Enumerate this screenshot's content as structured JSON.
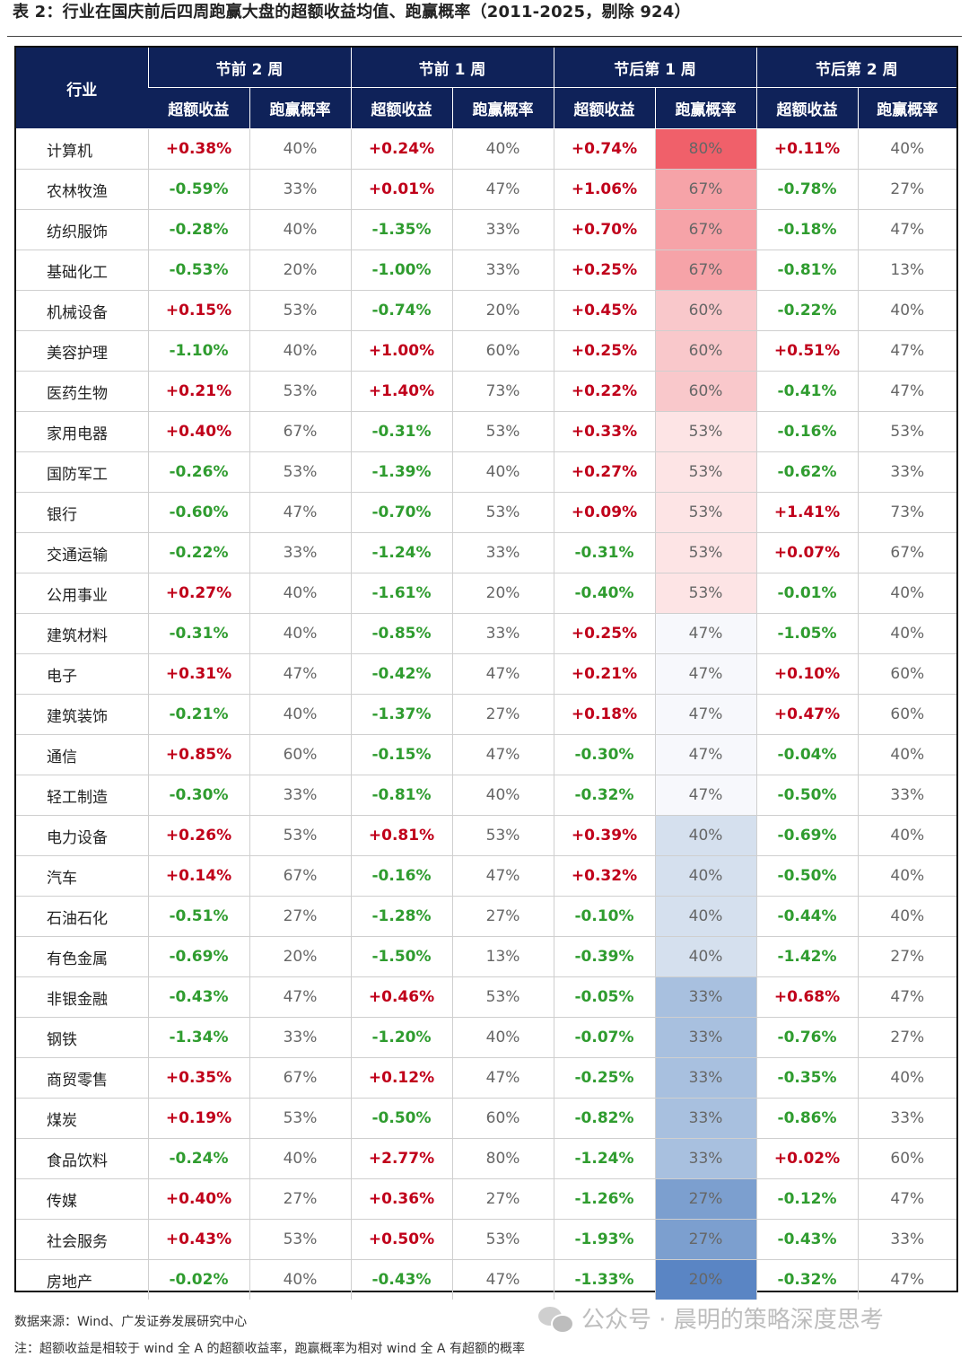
{
  "title": "表 2：行业在国庆前后四周跑赢大盘的超额收益均值、跑赢概率（2011-2025，剔除 924）",
  "header": {
    "industry": "行业",
    "groups": [
      "节前 2 周",
      "节前 1 周",
      "节后第 1 周",
      "节后第 2 周"
    ],
    "sub_ret": "超额收益",
    "sub_prob": "跑赢概率"
  },
  "colors": {
    "header_bg": "#0f2259",
    "positive_text": "#c0001a",
    "negative_text": "#2f9c2f",
    "heat_80": "#f0606a",
    "heat_67": "#f6a3a8",
    "heat_60": "#f9c8cb",
    "heat_53": "#fde4e5",
    "heat_47": "#f7f8fc",
    "heat_40": "#d5e0ee",
    "heat_33": "#a8c0df",
    "heat_27": "#7c9fcf",
    "heat_20": "#5a85c4"
  },
  "rows": [
    {
      "industry": "计算机",
      "cells": [
        "+0.38%",
        "40%",
        "+0.24%",
        "40%",
        "+0.74%",
        "80%",
        "+0.11%",
        "40%"
      ]
    },
    {
      "industry": "农林牧渔",
      "cells": [
        "-0.59%",
        "33%",
        "+0.01%",
        "47%",
        "+1.06%",
        "67%",
        "-0.78%",
        "27%"
      ]
    },
    {
      "industry": "纺织服饰",
      "cells": [
        "-0.28%",
        "40%",
        "-1.35%",
        "33%",
        "+0.70%",
        "67%",
        "-0.18%",
        "47%"
      ]
    },
    {
      "industry": "基础化工",
      "cells": [
        "-0.53%",
        "20%",
        "-1.00%",
        "33%",
        "+0.25%",
        "67%",
        "-0.81%",
        "13%"
      ]
    },
    {
      "industry": "机械设备",
      "cells": [
        "+0.15%",
        "53%",
        "-0.74%",
        "20%",
        "+0.45%",
        "60%",
        "-0.22%",
        "40%"
      ]
    },
    {
      "industry": "美容护理",
      "cells": [
        "-1.10%",
        "40%",
        "+1.00%",
        "60%",
        "+0.25%",
        "60%",
        "+0.51%",
        "47%"
      ]
    },
    {
      "industry": "医药生物",
      "cells": [
        "+0.21%",
        "53%",
        "+1.40%",
        "73%",
        "+0.22%",
        "60%",
        "-0.41%",
        "47%"
      ]
    },
    {
      "industry": "家用电器",
      "cells": [
        "+0.40%",
        "67%",
        "-0.31%",
        "53%",
        "+0.33%",
        "53%",
        "-0.16%",
        "53%"
      ]
    },
    {
      "industry": "国防军工",
      "cells": [
        "-0.26%",
        "53%",
        "-1.39%",
        "40%",
        "+0.27%",
        "53%",
        "-0.62%",
        "33%"
      ]
    },
    {
      "industry": "银行",
      "cells": [
        "-0.60%",
        "47%",
        "-0.70%",
        "53%",
        "+0.09%",
        "53%",
        "+1.41%",
        "73%"
      ]
    },
    {
      "industry": "交通运输",
      "cells": [
        "-0.22%",
        "33%",
        "-1.24%",
        "33%",
        "-0.31%",
        "53%",
        "+0.07%",
        "67%"
      ]
    },
    {
      "industry": "公用事业",
      "cells": [
        "+0.27%",
        "40%",
        "-1.61%",
        "20%",
        "-0.40%",
        "53%",
        "-0.01%",
        "40%"
      ]
    },
    {
      "industry": "建筑材料",
      "cells": [
        "-0.31%",
        "40%",
        "-0.85%",
        "33%",
        "+0.25%",
        "47%",
        "-1.05%",
        "40%"
      ]
    },
    {
      "industry": "电子",
      "cells": [
        "+0.31%",
        "47%",
        "-0.42%",
        "47%",
        "+0.21%",
        "47%",
        "+0.10%",
        "60%"
      ]
    },
    {
      "industry": "建筑装饰",
      "cells": [
        "-0.21%",
        "40%",
        "-1.37%",
        "27%",
        "+0.18%",
        "47%",
        "+0.47%",
        "60%"
      ]
    },
    {
      "industry": "通信",
      "cells": [
        "+0.85%",
        "60%",
        "-0.15%",
        "47%",
        "-0.30%",
        "47%",
        "-0.04%",
        "40%"
      ]
    },
    {
      "industry": "轻工制造",
      "cells": [
        "-0.30%",
        "33%",
        "-0.81%",
        "40%",
        "-0.32%",
        "47%",
        "-0.50%",
        "33%"
      ]
    },
    {
      "industry": "电力设备",
      "cells": [
        "+0.26%",
        "53%",
        "+0.81%",
        "53%",
        "+0.39%",
        "40%",
        "-0.69%",
        "40%"
      ]
    },
    {
      "industry": "汽车",
      "cells": [
        "+0.14%",
        "67%",
        "-0.16%",
        "47%",
        "+0.32%",
        "40%",
        "-0.50%",
        "40%"
      ]
    },
    {
      "industry": "石油石化",
      "cells": [
        "-0.51%",
        "27%",
        "-1.28%",
        "27%",
        "-0.10%",
        "40%",
        "-0.44%",
        "40%"
      ]
    },
    {
      "industry": "有色金属",
      "cells": [
        "-0.69%",
        "20%",
        "-1.50%",
        "13%",
        "-0.39%",
        "40%",
        "-1.42%",
        "27%"
      ]
    },
    {
      "industry": "非银金融",
      "cells": [
        "-0.43%",
        "47%",
        "+0.46%",
        "53%",
        "-0.05%",
        "33%",
        "+0.68%",
        "47%"
      ]
    },
    {
      "industry": "钢铁",
      "cells": [
        "-1.34%",
        "33%",
        "-1.20%",
        "40%",
        "-0.07%",
        "33%",
        "-0.76%",
        "27%"
      ]
    },
    {
      "industry": "商贸零售",
      "cells": [
        "+0.35%",
        "67%",
        "+0.12%",
        "47%",
        "-0.25%",
        "33%",
        "-0.35%",
        "40%"
      ]
    },
    {
      "industry": "煤炭",
      "cells": [
        "+0.19%",
        "53%",
        "-0.50%",
        "60%",
        "-0.82%",
        "33%",
        "-0.86%",
        "33%"
      ]
    },
    {
      "industry": "食品饮料",
      "cells": [
        "-0.24%",
        "40%",
        "+2.77%",
        "80%",
        "-1.24%",
        "33%",
        "+0.02%",
        "60%"
      ]
    },
    {
      "industry": "传媒",
      "cells": [
        "+0.40%",
        "27%",
        "+0.36%",
        "27%",
        "-1.26%",
        "27%",
        "-0.12%",
        "47%"
      ]
    },
    {
      "industry": "社会服务",
      "cells": [
        "+0.43%",
        "53%",
        "+0.50%",
        "53%",
        "-1.93%",
        "27%",
        "-0.43%",
        "33%"
      ]
    },
    {
      "industry": "房地产",
      "cells": [
        "-0.02%",
        "40%",
        "-0.43%",
        "47%",
        "-1.33%",
        "20%",
        "-0.32%",
        "47%"
      ]
    }
  ],
  "source": "数据来源：Wind、广发证券发展研究中心",
  "note": "注：超额收益是相较于 wind 全 A 的超额收益率，跑赢概率为相对 wind 全 A 有超额的概率",
  "watermark": "公众号 · 晨明的策略深度思考",
  "watermark_icon": "wechat-icon"
}
